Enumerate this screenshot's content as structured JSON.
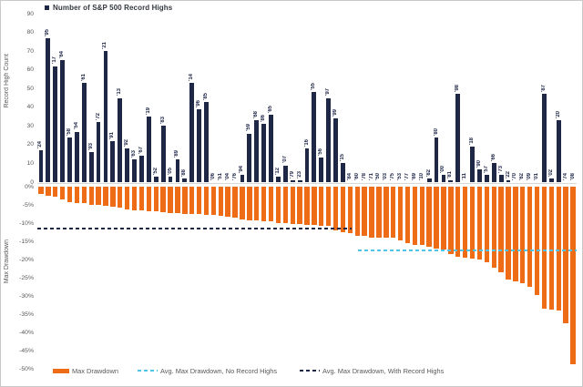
{
  "title_legend": {
    "label": "Number of S&P 500 Record Highs"
  },
  "colors": {
    "navy": "#1F2747",
    "orange": "#EF6C17",
    "cyan": "#4FC3E8",
    "axis_text": "#595959"
  },
  "top_axis": {
    "title": "Record High Count",
    "ticks": [
      "90",
      "80",
      "70",
      "60",
      "50",
      "40",
      "30",
      "20",
      "10",
      "0"
    ]
  },
  "bottom_axis": {
    "title": "Max Drawdown",
    "ticks": [
      "0%",
      "-5%",
      "-10%",
      "-15%",
      "-20%",
      "-25%",
      "-30%",
      "-35%",
      "-40%",
      "-45%",
      "-50%"
    ]
  },
  "legend": {
    "items": [
      {
        "label": "Max Drawdown",
        "swatch": "orange-bar"
      },
      {
        "label": "Avg. Max Drawdown, No Record Highs",
        "swatch": "cyan-dashed-line"
      },
      {
        "label": "Avg. Max Drawdown, With Record Highs",
        "swatch": "navy-dashed-line"
      }
    ]
  },
  "chart_data": [
    {
      "type": "bar",
      "title": "Number of S&P 500 Record Highs",
      "xlabel": "",
      "ylabel": "Record High Count",
      "ylim": [
        0,
        90
      ],
      "grid": false,
      "categories": [
        "'24",
        "'95",
        "'17",
        "'64",
        "'58",
        "'54",
        "'61",
        "'93",
        "'72",
        "'21",
        "'91",
        "'13",
        "'92",
        "'63",
        "'67",
        "'19",
        "'52",
        "'83",
        "'05",
        "'89",
        "'88",
        "'14",
        "'96",
        "'85",
        "'06",
        "'51",
        "'04",
        "'76",
        "'94",
        "'59",
        "'68",
        "'86",
        "'65",
        "'12",
        "'07",
        "'79",
        "'23",
        "'16",
        "'55",
        "'56",
        "'97",
        "'99",
        "'15",
        "'84",
        "'60",
        "'78",
        "'71",
        "'50",
        "'03",
        "'75",
        "'53",
        "'77",
        "'69",
        "'10",
        "'82",
        "'80",
        "'00",
        "'81",
        "'98",
        "'11",
        "'18",
        "'90",
        "'57",
        "'66",
        "'73",
        "'22",
        "'70",
        "'62",
        "'09",
        "'01",
        "'87",
        "'02",
        "'20",
        "'74",
        "'08"
      ],
      "values": [
        17,
        77,
        62,
        65,
        24,
        27,
        53,
        16,
        32,
        70,
        22,
        45,
        18,
        12,
        14,
        35,
        3,
        30,
        3,
        12,
        2,
        53,
        39,
        43,
        0,
        0,
        0,
        0,
        4,
        26,
        33,
        31,
        36,
        3,
        9,
        1,
        1,
        18,
        48,
        13,
        45,
        34,
        10,
        0,
        0,
        0,
        0,
        0,
        0,
        0,
        0,
        0,
        0,
        0,
        2,
        24,
        4,
        1,
        47,
        0,
        19,
        7,
        4,
        10,
        4,
        1,
        0,
        0,
        0,
        0,
        47,
        2,
        33,
        0,
        0
      ]
    },
    {
      "type": "bar",
      "title": "Max Drawdown",
      "xlabel": "",
      "ylabel": "Max Drawdown",
      "ylim": [
        -50,
        0
      ],
      "grid": false,
      "categories": [
        "'24",
        "'95",
        "'17",
        "'64",
        "'58",
        "'54",
        "'61",
        "'93",
        "'72",
        "'21",
        "'91",
        "'13",
        "'92",
        "'63",
        "'67",
        "'19",
        "'52",
        "'83",
        "'05",
        "'89",
        "'88",
        "'14",
        "'96",
        "'85",
        "'06",
        "'51",
        "'04",
        "'76",
        "'94",
        "'59",
        "'68",
        "'86",
        "'65",
        "'12",
        "'07",
        "'79",
        "'23",
        "'16",
        "'55",
        "'56",
        "'97",
        "'99",
        "'15",
        "'84",
        "'60",
        "'78",
        "'71",
        "'50",
        "'03",
        "'75",
        "'53",
        "'77",
        "'69",
        "'10",
        "'82",
        "'80",
        "'00",
        "'81",
        "'98",
        "'11",
        "'18",
        "'90",
        "'57",
        "'66",
        "'73",
        "'22",
        "'70",
        "'62",
        "'09",
        "'01",
        "'87",
        "'02",
        "'20",
        "'74",
        "'08"
      ],
      "values": [
        -2,
        -2.5,
        -2.8,
        -3.5,
        -4.3,
        -4.4,
        -4.4,
        -5,
        -5.1,
        -5.2,
        -5.6,
        -5.8,
        -6.2,
        -6.5,
        -6.6,
        -6.8,
        -6.8,
        -6.9,
        -7.2,
        -7.3,
        -7.4,
        -7.4,
        -7.6,
        -7.7,
        -7.7,
        -8.1,
        -8.2,
        -8.4,
        -8.9,
        -9.2,
        -9.3,
        -9.4,
        -9.6,
        -9.9,
        -10.1,
        -10.2,
        -10.3,
        -10.5,
        -10.6,
        -10.8,
        -10.8,
        -12.1,
        -12.4,
        -12.7,
        -13.4,
        -13.6,
        -13.9,
        -14,
        -14.1,
        -14.1,
        -14.8,
        -15.6,
        -15.9,
        -16,
        -16.6,
        -17.1,
        -17.2,
        -18.4,
        -19.3,
        -19.4,
        -19.8,
        -19.9,
        -20.7,
        -22.2,
        -23.4,
        -25.4,
        -26.1,
        -26.4,
        -27.6,
        -29.7,
        -33.5,
        -33.8,
        -33.9,
        -37.6,
        -48.8
      ],
      "avg_lines": {
        "with_record_highs": -11.5,
        "no_record_highs": -17.5
      },
      "legend_position": "bottom"
    }
  ]
}
